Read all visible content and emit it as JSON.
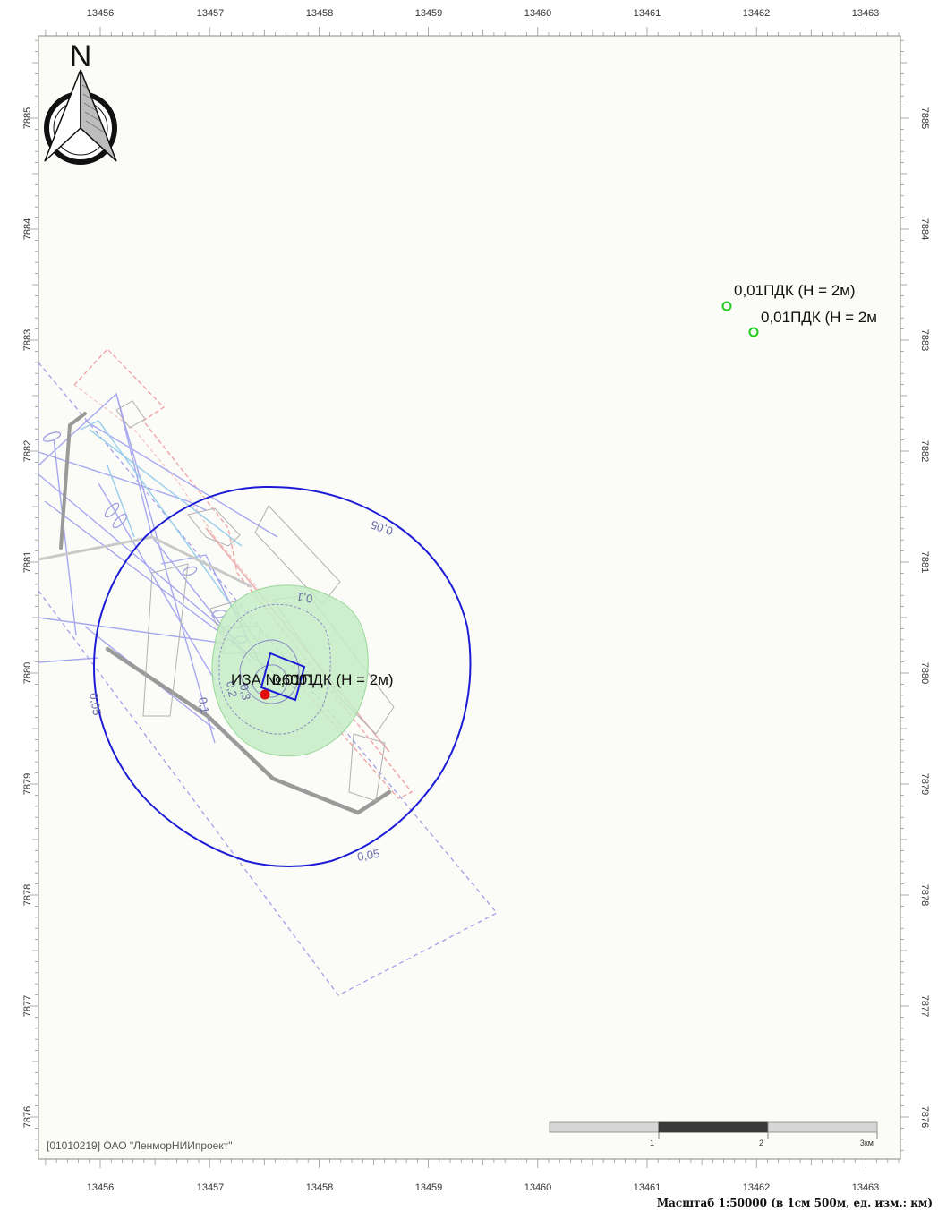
{
  "axes": {
    "x_ticks": [
      "13456",
      "13457",
      "13458",
      "13459",
      "13460",
      "13461",
      "13462",
      "13463"
    ],
    "y_ticks": [
      "7885",
      "7884",
      "7883",
      "7882",
      "7881",
      "7880",
      "7879",
      "7878",
      "7877",
      "7876"
    ]
  },
  "north_arrow": {
    "letter": "N"
  },
  "contours": [
    {
      "level": "0,05",
      "label": "0,05",
      "color": "#1c1cd6"
    },
    {
      "level": "0,1",
      "label": "0,1",
      "color": "#7b7bb8"
    },
    {
      "level": "0,2",
      "label": "0,2",
      "color": "#7b7bb8"
    },
    {
      "level": "0,3",
      "label": "0,3",
      "color": "#7b7bb8"
    }
  ],
  "points": [
    {
      "label": "0,01ПДК (H = 2м)",
      "color": "#22cc22"
    },
    {
      "label": "0,01ПДК (H = 2м",
      "color": "#22cc22"
    }
  ],
  "source": {
    "label": "ИЗА №6001",
    "overlap_label": "0,01ПДК (H = 2м)",
    "color": "#e01010"
  },
  "copyright": "[01010219] ОАО \"ЛенморНИИпроект\"",
  "scalebar": {
    "labels": [
      "1",
      "2",
      "3км"
    ]
  },
  "scale_text": "Масштаб 1:50000 (в 1см 500м, ед. изм.: км)",
  "colors": {
    "background": "#fbfbf8",
    "zone_fill": "#c6ecc6",
    "frame": "#8a8a8a"
  }
}
